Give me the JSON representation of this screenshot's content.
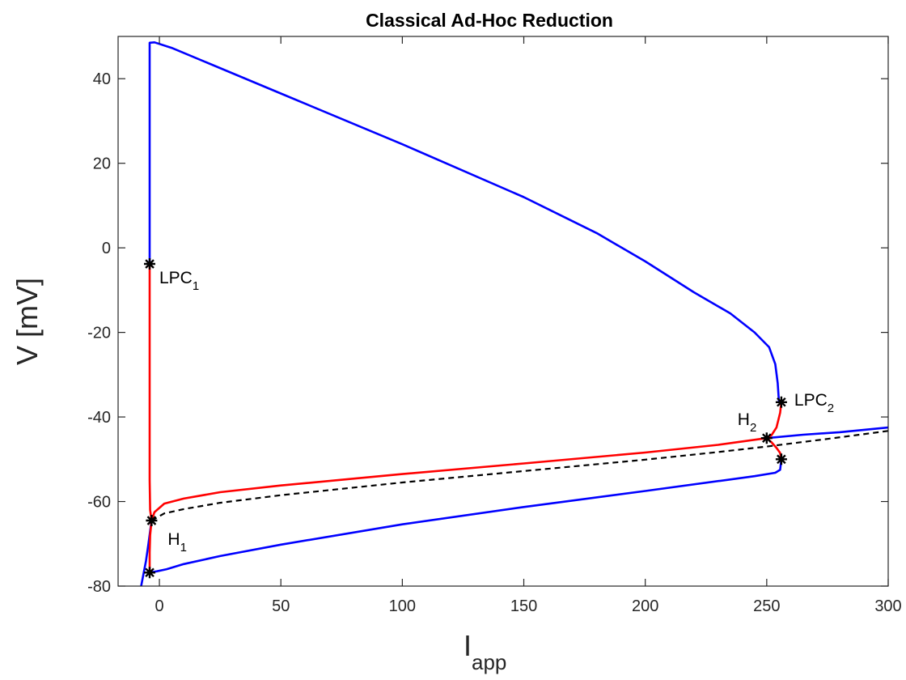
{
  "chart_data": {
    "type": "line",
    "title": "Classical Ad-Hoc Reduction",
    "xlabel": {
      "main": "I",
      "sub": "app"
    },
    "ylabel": "V [mV]",
    "xlim": [
      -17,
      300
    ],
    "ylim": [
      -80,
      50
    ],
    "xticks": [
      0,
      50,
      100,
      150,
      200,
      250,
      300
    ],
    "yticks": [
      -80,
      -60,
      -40,
      -20,
      0,
      20,
      40
    ],
    "grid": false,
    "legend": "none",
    "colors": {
      "stable": "#0000ff",
      "unstable": "#ff0000",
      "other": "#000000",
      "axis": "#262626"
    },
    "series": [
      {
        "style": "solid",
        "color": "#0000ff",
        "points": [
          [
            -7.5,
            -80
          ],
          [
            -5.5,
            -74
          ],
          [
            -4.5,
            -70
          ],
          [
            -3.8,
            -67
          ],
          [
            -3.2,
            -64.5
          ]
        ]
      },
      {
        "style": "solid",
        "color": "#ff0000",
        "points": [
          [
            -3.2,
            -64.5
          ],
          [
            -2,
            -62.5
          ],
          [
            2,
            -60.5
          ],
          [
            10,
            -59.3
          ],
          [
            25,
            -57.8
          ],
          [
            50,
            -56.2
          ],
          [
            100,
            -53.5
          ],
          [
            150,
            -51
          ],
          [
            200,
            -48.4
          ],
          [
            230,
            -46.6
          ],
          [
            250,
            -45
          ]
        ]
      },
      {
        "style": "solid",
        "color": "#0000ff",
        "points": [
          [
            250,
            -45
          ],
          [
            265,
            -44.2
          ],
          [
            280,
            -43.6
          ],
          [
            300,
            -42.5
          ]
        ]
      },
      {
        "style": "dashed",
        "color": "#000000",
        "points": [
          [
            -3.2,
            -64.5
          ],
          [
            2,
            -62.8
          ],
          [
            10,
            -61.8
          ],
          [
            25,
            -60.3
          ],
          [
            50,
            -58.5
          ],
          [
            100,
            -55.5
          ],
          [
            150,
            -52.8
          ],
          [
            200,
            -50.1
          ],
          [
            230,
            -48.3
          ],
          [
            250,
            -47
          ],
          [
            275,
            -45.2
          ],
          [
            300,
            -43.3
          ]
        ]
      },
      {
        "style": "solid",
        "color": "#ff0000",
        "points": [
          [
            -3.2,
            -64.5
          ],
          [
            -3.8,
            -62
          ],
          [
            -4,
            -55
          ],
          [
            -4,
            -40
          ],
          [
            -4,
            -20
          ],
          [
            -4,
            -3.8
          ]
        ]
      },
      {
        "style": "solid",
        "color": "#ff0000",
        "points": [
          [
            -4,
            -76.8
          ],
          [
            -4,
            -72
          ],
          [
            -3.8,
            -68
          ],
          [
            -3.2,
            -64.5
          ]
        ]
      },
      {
        "style": "solid",
        "color": "#0000ff",
        "points": [
          [
            -4,
            -3.8
          ],
          [
            -4,
            10
          ],
          [
            -4,
            30
          ],
          [
            -4,
            45
          ],
          [
            -4,
            48.5
          ],
          [
            -2,
            48.6
          ],
          [
            5,
            47.3
          ],
          [
            50,
            36.5
          ],
          [
            100,
            24.5
          ],
          [
            150,
            12
          ],
          [
            180,
            3.5
          ],
          [
            200,
            -3.2
          ],
          [
            220,
            -10.5
          ],
          [
            235,
            -15.5
          ],
          [
            245,
            -20
          ],
          [
            251,
            -23.5
          ],
          [
            253.5,
            -27.5
          ],
          [
            254.5,
            -32
          ],
          [
            255,
            -36.3
          ],
          [
            256,
            -36.5
          ]
        ]
      },
      {
        "style": "solid",
        "color": "#ff0000",
        "points": [
          [
            256,
            -36.5
          ],
          [
            255.5,
            -39
          ],
          [
            254,
            -42.5
          ],
          [
            252,
            -44.3
          ],
          [
            250,
            -45
          ],
          [
            252,
            -46
          ],
          [
            254,
            -47.3
          ],
          [
            255.5,
            -48.5
          ],
          [
            256,
            -50
          ]
        ]
      },
      {
        "style": "solid",
        "color": "#0000ff",
        "points": [
          [
            256,
            -50
          ],
          [
            255.5,
            -52.5
          ],
          [
            253.5,
            -53.2
          ],
          [
            245,
            -54
          ],
          [
            200,
            -57.5
          ],
          [
            150,
            -61.3
          ],
          [
            100,
            -65.4
          ],
          [
            50,
            -70.2
          ],
          [
            25,
            -72.9
          ],
          [
            10,
            -74.8
          ],
          [
            3,
            -76
          ],
          [
            -1,
            -76.5
          ],
          [
            -4,
            -76.8
          ]
        ]
      }
    ],
    "markers": [
      {
        "x": -4,
        "y": -3.8,
        "label": "LPC",
        "sub": "1",
        "dx": 12,
        "dy": 24
      },
      {
        "x": -3.2,
        "y": -64.5,
        "label": "H",
        "sub": "1",
        "dx": 20,
        "dy": 30
      },
      {
        "x": -4,
        "y": -76.8,
        "label": "",
        "sub": ""
      },
      {
        "x": 250,
        "y": -45,
        "label": "H",
        "sub": "2",
        "dx": -36,
        "dy": -16
      },
      {
        "x": 256,
        "y": -36.5,
        "label": "LPC",
        "sub": "2",
        "dx": 16,
        "dy": 4
      },
      {
        "x": 256,
        "y": -50,
        "label": "",
        "sub": ""
      }
    ]
  }
}
